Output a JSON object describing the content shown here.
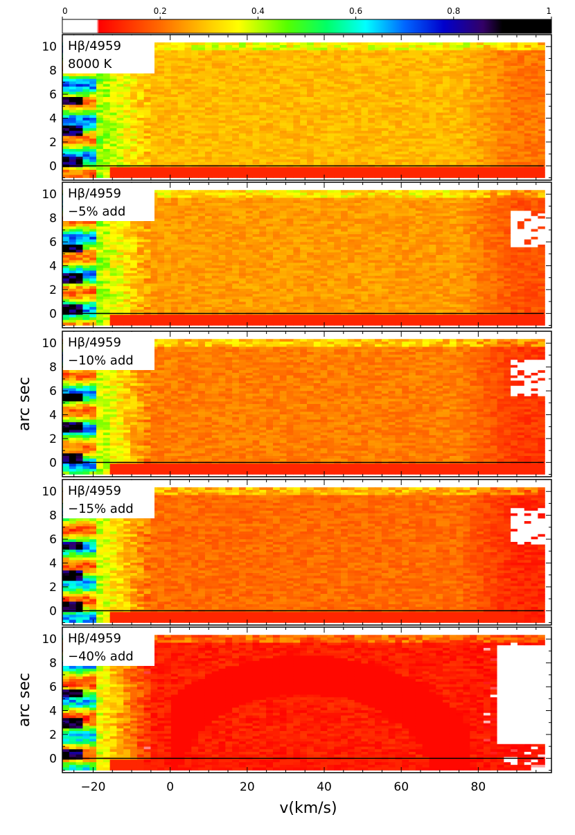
{
  "colorbar": {
    "ticks": [
      "0",
      "0.2",
      "0.4",
      "0.6",
      "0.8",
      "1"
    ],
    "tick_values": [
      0,
      0.2,
      0.4,
      0.6,
      0.8,
      1
    ],
    "stops": [
      {
        "v": 0.0,
        "color": "#ffffff"
      },
      {
        "v": 0.07,
        "color": "#ffffff"
      },
      {
        "v": 0.075,
        "color": "#ff0000"
      },
      {
        "v": 0.2,
        "color": "#ff6a00"
      },
      {
        "v": 0.3,
        "color": "#ffcc00"
      },
      {
        "v": 0.36,
        "color": "#ffff00"
      },
      {
        "v": 0.46,
        "color": "#55ff00"
      },
      {
        "v": 0.54,
        "color": "#00ff66"
      },
      {
        "v": 0.62,
        "color": "#00ffff"
      },
      {
        "v": 0.7,
        "color": "#0066ff"
      },
      {
        "v": 0.78,
        "color": "#0000cc"
      },
      {
        "v": 0.86,
        "color": "#330066"
      },
      {
        "v": 0.9,
        "color": "#000000"
      },
      {
        "v": 1.0,
        "color": "#000000"
      }
    ]
  },
  "chart_data": {
    "type": "heatmap",
    "xlabel": "v(km/s)",
    "ylabel": "arc sec",
    "xlim": [
      -28,
      99
    ],
    "ylim": [
      -1.2,
      11
    ],
    "x_ticks": [
      -20,
      0,
      20,
      40,
      60,
      80
    ],
    "x_tick_labels": [
      "−20",
      "0",
      "20",
      "40",
      "60",
      "80"
    ],
    "y_ticks": [
      0,
      2,
      4,
      6,
      8,
      10
    ],
    "y_tick_labels": [
      "0",
      "2",
      "4",
      "6",
      "8",
      "10"
    ],
    "panels": [
      {
        "label_line1": "Hβ/4959",
        "label_line2": "8000 K",
        "base": 0.28,
        "wing": 0.45,
        "right": 0.21,
        "shows_ylabel": false
      },
      {
        "label_line1": "Hβ/4959",
        "label_line2": "−5% add",
        "base": 0.25,
        "wing": 0.44,
        "right": 0.17,
        "shows_ylabel": false
      },
      {
        "label_line1": "Hβ/4959",
        "label_line2": "−10% add",
        "base": 0.22,
        "wing": 0.43,
        "right": 0.14,
        "shows_ylabel": true
      },
      {
        "label_line1": "Hβ/4959",
        "label_line2": "−15% add",
        "base": 0.2,
        "wing": 0.42,
        "right": 0.12,
        "shows_ylabel": false
      },
      {
        "label_line1": "Hβ/4959",
        "label_line2": "−40% add",
        "base": 0.11,
        "wing": 0.4,
        "right": 0.09,
        "shows_ylabel": true
      }
    ]
  }
}
